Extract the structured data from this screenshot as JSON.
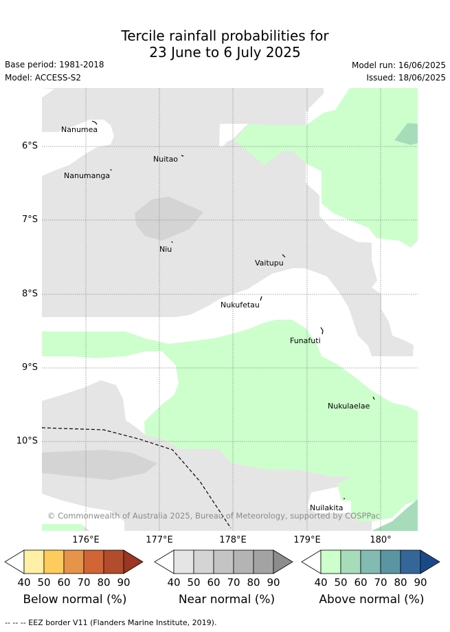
{
  "title": {
    "line1": "Tercile rainfall probabilities for",
    "line2": "23 June to 6 July 2025"
  },
  "meta": {
    "base_period": "Base period: 1981-2018",
    "model": "Model: ACCESS-S2",
    "model_run": "Model run: 16/06/2025",
    "issued": "Issued: 18/06/2025"
  },
  "map": {
    "lat_labels": [
      "6°S",
      "7°S",
      "8°S",
      "9°S",
      "10°S"
    ],
    "lon_labels": [
      "176°E",
      "177°E",
      "178°E",
      "179°E",
      "180°"
    ],
    "places": [
      {
        "name": "Nanumea"
      },
      {
        "name": "Nuitao"
      },
      {
        "name": "Nanumanga"
      },
      {
        "name": "Niu"
      },
      {
        "name": "Vaitupu"
      },
      {
        "name": "Nukufetau"
      },
      {
        "name": "Funafuti"
      },
      {
        "name": "Nukulaelae"
      },
      {
        "name": "Nuilakita"
      }
    ],
    "copyright": "© Commonwealth of Australia 2025, Bureau of Meteorology, supported by COSPPac"
  },
  "colorbars": [
    {
      "title": "Below normal (%)",
      "ticks": [
        "40",
        "50",
        "60",
        "70",
        "80",
        "90"
      ],
      "colors": [
        "#ffffff",
        "#fff0a5",
        "#fecc5c",
        "#e5944a",
        "#d16535",
        "#b34c2c",
        "#9b3524"
      ]
    },
    {
      "title": "Near normal (%)",
      "ticks": [
        "40",
        "50",
        "60",
        "70",
        "80",
        "90"
      ],
      "colors": [
        "#ffffff",
        "#e5e5e5",
        "#d4d4d4",
        "#c4c4c4",
        "#b4b4b4",
        "#a3a3a3",
        "#8c8c8c"
      ]
    },
    {
      "title": "Above normal (%)",
      "ticks": [
        "40",
        "50",
        "60",
        "70",
        "80",
        "90"
      ],
      "colors": [
        "#ffffff",
        "#ccffcc",
        "#a7dcbb",
        "#82bbb1",
        "#5a95a2",
        "#346699",
        "#1a4a85"
      ]
    }
  ],
  "footer": "-- -- -- EEZ border V11 (Flanders Marine Institute, 2019)."
}
